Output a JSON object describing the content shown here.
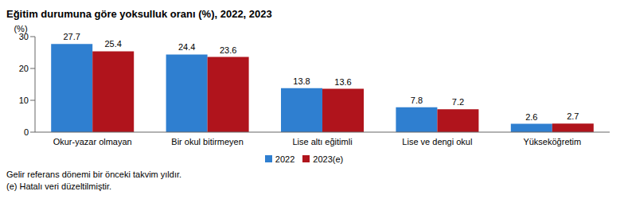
{
  "chart_data": {
    "type": "bar",
    "title": "Eğitim durumuna göre yoksulluk oranı (%), 2022, 2023",
    "ylabel": "(%)",
    "categories": [
      "Okur-yazar olmayan",
      "Bir okul bitirmeyen",
      "Lise altı eğitimli",
      "Lise ve dengi okul",
      "Yükseköğretim"
    ],
    "series": [
      {
        "name": "2022",
        "color": "#2f7fd0",
        "values": [
          27.7,
          24.4,
          13.8,
          7.8,
          2.6
        ]
      },
      {
        "name": "2023(e)",
        "color": "#b0141c",
        "values": [
          25.4,
          23.6,
          13.6,
          7.2,
          2.7
        ]
      }
    ],
    "ylim": [
      0,
      30
    ],
    "yticks": [
      0,
      10,
      20,
      30
    ],
    "grid": false,
    "legend": "bottom",
    "data_labels": true,
    "annotations": [
      "Gelir referans dönemi bir önceki takvim yıldır.",
      "(e) Hatalı veri düzeltilmiştir."
    ]
  }
}
